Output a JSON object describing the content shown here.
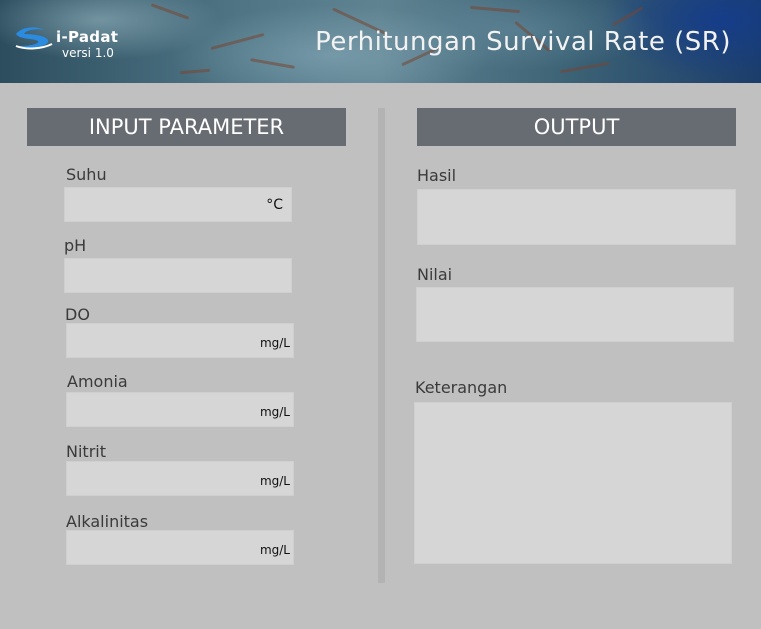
{
  "header": {
    "logo_text": "i-Padat",
    "version": "versi 1.0",
    "title": "Perhitungan Survival Rate (SR)"
  },
  "input_panel": {
    "heading": "INPUT PARAMETER",
    "fields": [
      {
        "label": "Suhu",
        "value": "",
        "unit": "°C"
      },
      {
        "label": "pH",
        "value": "",
        "unit": ""
      },
      {
        "label": "DO",
        "value": "",
        "unit": "mg/L"
      },
      {
        "label": "Amonia",
        "value": "",
        "unit": "mg/L"
      },
      {
        "label": "Nitrit",
        "value": "",
        "unit": "mg/L"
      },
      {
        "label": "Alkalinitas",
        "value": "",
        "unit": "mg/L"
      }
    ]
  },
  "output_panel": {
    "heading": "OUTPUT",
    "hasil_label": "Hasil",
    "nilai_label": "Nilai",
    "keterangan_label": "Keterangan"
  },
  "colors": {
    "background": "#c0c0c0",
    "panel_heading": "#676b72",
    "field": "#d6d6d6"
  }
}
